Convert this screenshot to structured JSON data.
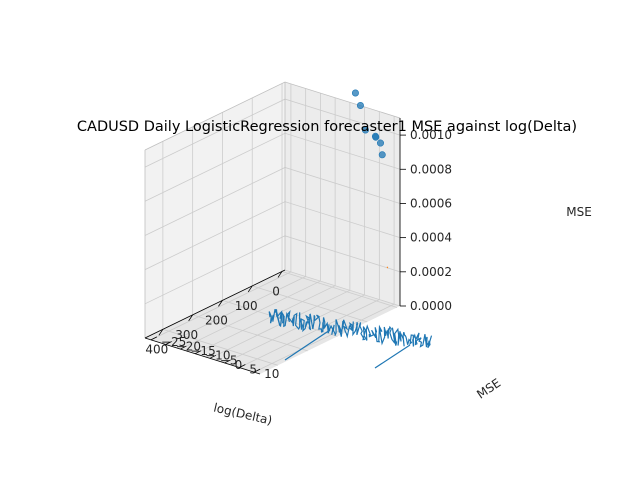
{
  "chart_data": {
    "type": "scatter",
    "title": "CADUSD Daily LogisticRegression forecaster1 MSE against log(Delta)",
    "xlabel": "log(Delta)",
    "ylabel": "MSE",
    "zlabel": "MSE",
    "x_ticks": [
      "0",
      "100",
      "200",
      "300",
      "400"
    ],
    "y_ticks": [
      "−25",
      "−20",
      "−15",
      "−10",
      "−5",
      "0",
      "5",
      "10"
    ],
    "z_ticks": [
      "0.0000",
      "0.0002",
      "0.0004",
      "0.0006",
      "0.0008",
      "0.0010"
    ],
    "xlim": [
      -10,
      460
    ],
    "ylim": [
      -27,
      12
    ],
    "zlim": [
      0,
      0.0011
    ],
    "grid": true,
    "colors": {
      "points": "#1f77b4",
      "line": "#1f77b4",
      "segment": "#ff7f0e",
      "pane": "#f2f2f2",
      "grid": "#cccccc"
    },
    "series": [
      {
        "kind": "points",
        "x": [
          1,
          4,
          7,
          2,
          6,
          10,
          13
        ],
        "y": [
          -2,
          0,
          2,
          5,
          7,
          8,
          6
        ],
        "z": [
          0.00118,
          0.00112,
          0.00099,
          0.00096,
          0.00094,
          0.00088,
          0.00098
        ]
      },
      {
        "kind": "segment",
        "x": [
          1,
          4
        ],
        "y": [
          9,
          9
        ],
        "z": [
          0.00022,
          0.00022
        ]
      }
    ]
  }
}
